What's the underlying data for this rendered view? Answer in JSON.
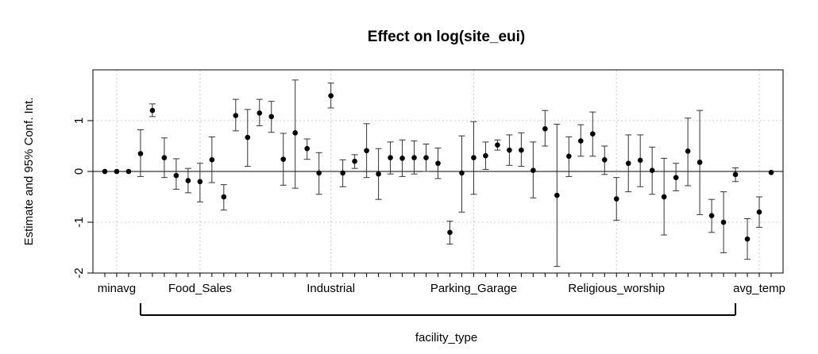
{
  "chart_data": {
    "type": "scatter",
    "title": "Effect on log(site_eui)",
    "ylabel": "Estimate and 95% Conf. Int.",
    "xlabel": "facility_type",
    "ylim": [
      -2,
      2
    ],
    "xlim": [
      0,
      58
    ],
    "yticks": [
      -2,
      -1,
      0,
      1
    ],
    "ytick_labels": [
      "-2",
      "-1",
      "0",
      "1"
    ],
    "x_tick_positions": [
      1,
      2,
      3,
      4,
      5,
      6,
      7,
      8,
      9,
      10,
      11,
      12,
      13,
      14,
      15,
      16,
      17,
      18,
      19,
      20,
      21,
      22,
      23,
      24,
      25,
      26,
      27,
      28,
      29,
      30,
      31,
      32,
      33,
      34,
      35,
      36,
      37,
      38,
      39,
      40,
      41,
      42,
      43,
      44,
      45,
      46,
      47,
      48,
      49,
      50,
      51,
      52,
      53,
      54,
      55,
      56,
      57
    ],
    "x_labels": [
      {
        "label": "minavg",
        "x": 2
      },
      {
        "label": "Food_Sales",
        "x": 9
      },
      {
        "label": "Industrial",
        "x": 20
      },
      {
        "label": "Parking_Garage",
        "x": 32
      },
      {
        "label": "Religious_worship",
        "x": 44
      },
      {
        "label": "avg_temp",
        "x": 56
      }
    ],
    "facility_bracket": [
      4,
      54
    ],
    "grid": true,
    "reference_line": 0,
    "points": [
      {
        "x": 1,
        "y": 0.0,
        "lo": 0.0,
        "hi": 0.0
      },
      {
        "x": 2,
        "y": 0.0,
        "lo": 0.0,
        "hi": 0.0
      },
      {
        "x": 3,
        "y": 0.0,
        "lo": 0.0,
        "hi": 0.0
      },
      {
        "x": 4,
        "y": 0.35,
        "lo": -0.1,
        "hi": 0.82
      },
      {
        "x": 5,
        "y": 1.2,
        "lo": 1.08,
        "hi": 1.33
      },
      {
        "x": 6,
        "y": 0.27,
        "lo": -0.12,
        "hi": 0.66
      },
      {
        "x": 7,
        "y": -0.08,
        "lo": -0.35,
        "hi": 0.25
      },
      {
        "x": 8,
        "y": -0.18,
        "lo": -0.42,
        "hi": 0.06
      },
      {
        "x": 9,
        "y": -0.2,
        "lo": -0.6,
        "hi": 0.16
      },
      {
        "x": 10,
        "y": 0.23,
        "lo": -0.22,
        "hi": 0.68
      },
      {
        "x": 11,
        "y": -0.5,
        "lo": -0.76,
        "hi": -0.26
      },
      {
        "x": 12,
        "y": 1.1,
        "lo": 0.8,
        "hi": 1.42
      },
      {
        "x": 13,
        "y": 0.67,
        "lo": 0.1,
        "hi": 1.22
      },
      {
        "x": 14,
        "y": 1.15,
        "lo": 0.9,
        "hi": 1.42
      },
      {
        "x": 15,
        "y": 1.08,
        "lo": 0.77,
        "hi": 1.38
      },
      {
        "x": 16,
        "y": 0.24,
        "lo": -0.27,
        "hi": 0.75
      },
      {
        "x": 17,
        "y": 0.76,
        "lo": -0.33,
        "hi": 1.8
      },
      {
        "x": 18,
        "y": 0.45,
        "lo": 0.24,
        "hi": 0.64
      },
      {
        "x": 19,
        "y": -0.03,
        "lo": -0.45,
        "hi": 0.37
      },
      {
        "x": 20,
        "y": 1.49,
        "lo": 1.25,
        "hi": 1.74
      },
      {
        "x": 21,
        "y": -0.03,
        "lo": -0.3,
        "hi": 0.23
      },
      {
        "x": 22,
        "y": 0.2,
        "lo": 0.06,
        "hi": 0.33
      },
      {
        "x": 23,
        "y": 0.41,
        "lo": -0.12,
        "hi": 0.94
      },
      {
        "x": 24,
        "y": -0.05,
        "lo": -0.55,
        "hi": 0.45
      },
      {
        "x": 25,
        "y": 0.27,
        "lo": -0.05,
        "hi": 0.58
      },
      {
        "x": 26,
        "y": 0.26,
        "lo": -0.1,
        "hi": 0.62
      },
      {
        "x": 27,
        "y": 0.27,
        "lo": -0.05,
        "hi": 0.6
      },
      {
        "x": 28,
        "y": 0.27,
        "lo": 0.0,
        "hi": 0.54
      },
      {
        "x": 29,
        "y": 0.16,
        "lo": -0.14,
        "hi": 0.46
      },
      {
        "x": 30,
        "y": -1.2,
        "lo": -1.43,
        "hi": -0.98
      },
      {
        "x": 31,
        "y": -0.03,
        "lo": -0.8,
        "hi": 0.7
      },
      {
        "x": 32,
        "y": 0.27,
        "lo": -0.45,
        "hi": 0.98
      },
      {
        "x": 33,
        "y": 0.31,
        "lo": 0.04,
        "hi": 0.58
      },
      {
        "x": 34,
        "y": 0.52,
        "lo": 0.42,
        "hi": 0.62
      },
      {
        "x": 35,
        "y": 0.42,
        "lo": 0.12,
        "hi": 0.72
      },
      {
        "x": 36,
        "y": 0.42,
        "lo": 0.1,
        "hi": 0.76
      },
      {
        "x": 37,
        "y": 0.02,
        "lo": -0.52,
        "hi": 0.58
      },
      {
        "x": 38,
        "y": 0.84,
        "lo": 0.5,
        "hi": 1.2
      },
      {
        "x": 39,
        "y": -0.47,
        "lo": -1.87,
        "hi": 0.93
      },
      {
        "x": 40,
        "y": 0.3,
        "lo": -0.1,
        "hi": 0.68
      },
      {
        "x": 41,
        "y": 0.6,
        "lo": 0.3,
        "hi": 0.92
      },
      {
        "x": 42,
        "y": 0.74,
        "lo": 0.3,
        "hi": 1.17
      },
      {
        "x": 43,
        "y": 0.23,
        "lo": -0.06,
        "hi": 0.5
      },
      {
        "x": 44,
        "y": -0.54,
        "lo": -0.96,
        "hi": -0.12
      },
      {
        "x": 45,
        "y": 0.16,
        "lo": -0.4,
        "hi": 0.72
      },
      {
        "x": 46,
        "y": 0.22,
        "lo": -0.3,
        "hi": 0.72
      },
      {
        "x": 47,
        "y": 0.02,
        "lo": -0.45,
        "hi": 0.48
      },
      {
        "x": 48,
        "y": -0.5,
        "lo": -1.25,
        "hi": 0.26
      },
      {
        "x": 49,
        "y": -0.12,
        "lo": -0.38,
        "hi": 0.16
      },
      {
        "x": 50,
        "y": 0.4,
        "lo": -0.28,
        "hi": 1.05
      },
      {
        "x": 51,
        "y": 0.18,
        "lo": -0.85,
        "hi": 1.2
      },
      {
        "x": 52,
        "y": -0.87,
        "lo": -1.2,
        "hi": -0.55
      },
      {
        "x": 53,
        "y": -1.0,
        "lo": -1.6,
        "hi": -0.4
      },
      {
        "x": 54,
        "y": -0.06,
        "lo": -0.2,
        "hi": 0.07
      },
      {
        "x": 55,
        "y": -1.33,
        "lo": -1.73,
        "hi": -0.93
      },
      {
        "x": 56,
        "y": -0.8,
        "lo": -1.1,
        "hi": -0.5
      },
      {
        "x": 57,
        "y": -0.02,
        "lo": -0.02,
        "hi": -0.02
      }
    ]
  }
}
